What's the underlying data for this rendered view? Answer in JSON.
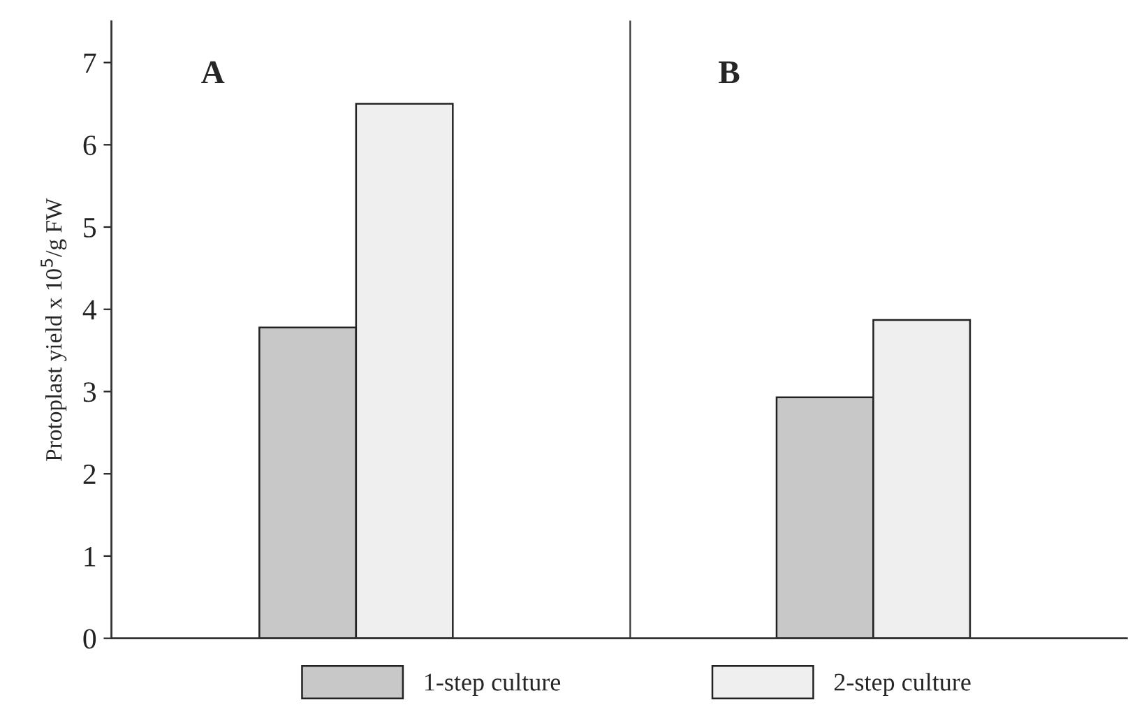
{
  "chart_data": {
    "type": "bar",
    "ylabel": "Protoplast yield x 10$^{5}$/g FW",
    "categories": [
      null,
      null
    ],
    "annotations": [
      "A",
      "B"
    ],
    "series": [
      {
        "name": "1-step culture",
        "color": "#c8c8c8",
        "values": [
          3.78,
          2.93
        ]
      },
      {
        "name": "2-step culture",
        "color": "#efefef",
        "values": [
          6.5,
          3.87
        ]
      }
    ],
    "ylim": [
      0,
      7.5
    ],
    "yticks": [
      0,
      1,
      2,
      3,
      4,
      5,
      6,
      7
    ],
    "tick_labels": "y",
    "legend": "bottom"
  }
}
